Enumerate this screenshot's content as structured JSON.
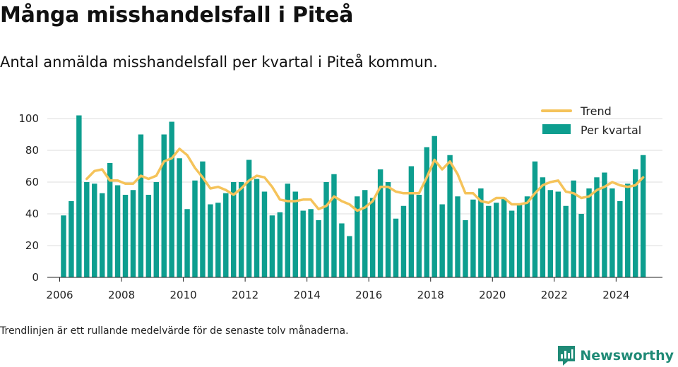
{
  "header": {
    "title": "Många misshandelsfall i Piteå",
    "subtitle": "Antal anmälda misshandelsfall per kvartal i Piteå kommun."
  },
  "footer": {
    "note": "Trendlinjen är ett rullande medelvärde för de senaste tolv månaderna.",
    "brand": "Newsworthy"
  },
  "colors": {
    "bar": "#0d9e8f",
    "trend": "#f5c35a",
    "grid": "#dcdcdc",
    "brand": "#1f8a76"
  },
  "chart_data": {
    "type": "bar",
    "x_start": "2006Q1",
    "xlim": [
      2005.6,
      2025.5
    ],
    "ylim": [
      0,
      100
    ],
    "y_ticks": [
      0,
      20,
      40,
      60,
      80,
      100
    ],
    "x_ticks": [
      2006,
      2008,
      2010,
      2012,
      2014,
      2016,
      2018,
      2020,
      2022,
      2024
    ],
    "grid": "horizontal",
    "legend_position": "top-right",
    "series": [
      {
        "name": "Per kvartal",
        "kind": "bar",
        "values": [
          39,
          48,
          102,
          60,
          59,
          53,
          72,
          58,
          52,
          55,
          90,
          52,
          60,
          90,
          98,
          75,
          43,
          61,
          73,
          46,
          47,
          53,
          60,
          60,
          74,
          62,
          54,
          39,
          41,
          59,
          54,
          42,
          43,
          36,
          60,
          65,
          34,
          26,
          51,
          55,
          50,
          68,
          60,
          37,
          45,
          70,
          52,
          82,
          89,
          46,
          77,
          51,
          36,
          49,
          56,
          45,
          47,
          50,
          42,
          46,
          51,
          73,
          63,
          55,
          54,
          45,
          61,
          40,
          56,
          63,
          66,
          56,
          48,
          59,
          68,
          77
        ]
      },
      {
        "name": "Trend",
        "kind": "line",
        "values": [
          null,
          null,
          null,
          62,
          67,
          68,
          61,
          61,
          59,
          59,
          64,
          62,
          64,
          73,
          75,
          81,
          77,
          69,
          63,
          56,
          57,
          55,
          52,
          56,
          61,
          64,
          63,
          57,
          49,
          48,
          48,
          49,
          49,
          43,
          45,
          51,
          48,
          46,
          42,
          44,
          48,
          57,
          57,
          54,
          53,
          53,
          53,
          63,
          74,
          68,
          73,
          65,
          53,
          53,
          48,
          47,
          50,
          50,
          46,
          46,
          47,
          53,
          58,
          60,
          61,
          54,
          53,
          50,
          51,
          55,
          57,
          60,
          58,
          57,
          58,
          63
        ]
      }
    ]
  }
}
